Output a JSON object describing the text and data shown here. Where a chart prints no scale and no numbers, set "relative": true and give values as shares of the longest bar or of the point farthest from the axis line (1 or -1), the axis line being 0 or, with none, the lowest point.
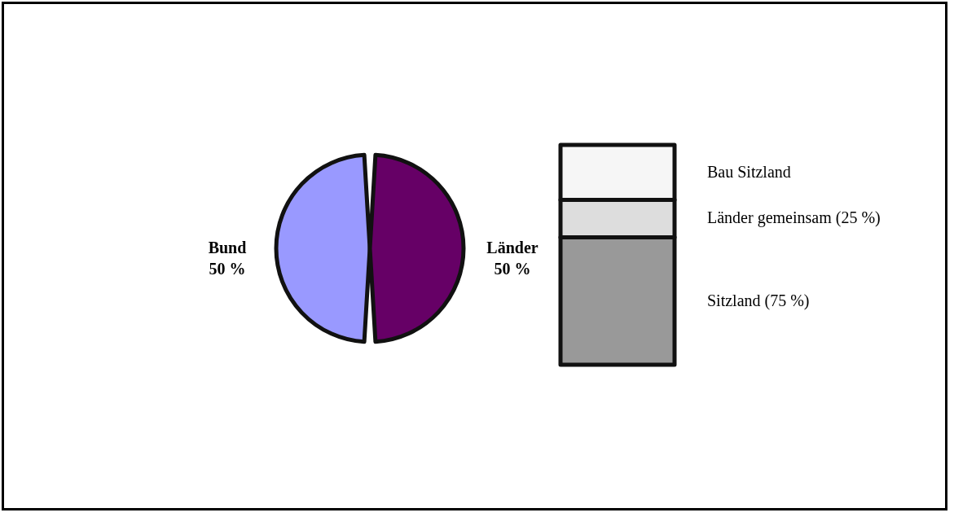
{
  "chart_data": [
    {
      "type": "pie",
      "categories": [
        "Bund",
        "Länder"
      ],
      "values": [
        50,
        50
      ],
      "colors": [
        "#9999ff",
        "#660066"
      ],
      "value_labels": [
        "50 %",
        "50 %"
      ]
    },
    {
      "type": "bar",
      "stacked": true,
      "relative": true,
      "categories": [
        null
      ],
      "series": [
        {
          "name": "Sitzland (75 %)",
          "color": "#999999",
          "values": [
            0.58
          ]
        },
        {
          "name": "Länder gemeinsam (25 %)",
          "color": "#dddddd",
          "values": [
            0.17
          ]
        },
        {
          "name": "Bau Sitzland",
          "color": "#f6f6f6",
          "values": [
            0.25
          ]
        }
      ]
    }
  ]
}
